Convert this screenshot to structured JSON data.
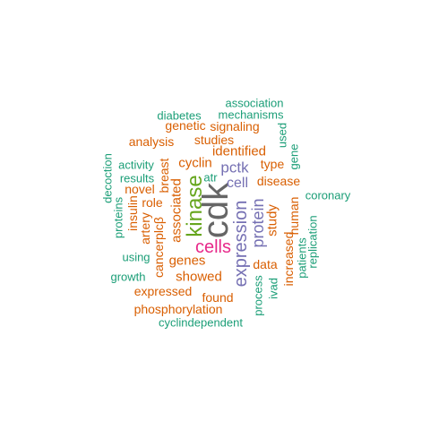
{
  "colors": {
    "teal": "#1b9e77",
    "orange": "#d95f02",
    "purple": "#7570b3",
    "magenta": "#e7298a",
    "green": "#66a61e",
    "gray": "#666666"
  },
  "words": [
    {
      "text": "cdk",
      "color": "gray",
      "vertical": true
    },
    {
      "text": "kinase",
      "color": "green",
      "vertical": true
    },
    {
      "text": "cells",
      "color": "magenta",
      "vertical": false
    },
    {
      "text": "expression",
      "color": "purple",
      "vertical": true
    },
    {
      "text": "protein",
      "color": "purple",
      "vertical": true
    },
    {
      "text": "pctk",
      "color": "purple",
      "vertical": false
    },
    {
      "text": "cell",
      "color": "purple",
      "vertical": false
    },
    {
      "text": "associated",
      "color": "orange",
      "vertical": true
    },
    {
      "text": "cyclin",
      "color": "orange",
      "vertical": false
    },
    {
      "text": "identified",
      "color": "orange",
      "vertical": false
    },
    {
      "text": "genes",
      "color": "orange",
      "vertical": false
    },
    {
      "text": "showed",
      "color": "orange",
      "vertical": false
    },
    {
      "text": "study",
      "color": "orange",
      "vertical": true
    },
    {
      "text": "disease",
      "color": "orange",
      "vertical": false
    },
    {
      "text": "breast",
      "color": "orange",
      "vertical": true
    },
    {
      "text": "type",
      "color": "orange",
      "vertical": false
    },
    {
      "text": "studies",
      "color": "orange",
      "vertical": false
    },
    {
      "text": "signaling",
      "color": "orange",
      "vertical": false
    },
    {
      "text": "genetic",
      "color": "orange",
      "vertical": false
    },
    {
      "text": "analysis",
      "color": "orange",
      "vertical": false
    },
    {
      "text": "novel",
      "color": "orange",
      "vertical": false
    },
    {
      "text": "role",
      "color": "orange",
      "vertical": false
    },
    {
      "text": "artery",
      "color": "orange",
      "vertical": true
    },
    {
      "text": "cancerplcβ",
      "color": "orange",
      "vertical": true
    },
    {
      "text": "expressed",
      "color": "orange",
      "vertical": false
    },
    {
      "text": "found",
      "color": "orange",
      "vertical": false
    },
    {
      "text": "phosphorylation",
      "color": "orange",
      "vertical": false
    },
    {
      "text": "data",
      "color": "orange",
      "vertical": false
    },
    {
      "text": "increased",
      "color": "orange",
      "vertical": true
    },
    {
      "text": "human",
      "color": "orange",
      "vertical": true
    },
    {
      "text": "insulin",
      "color": "orange",
      "vertical": true
    },
    {
      "text": "atr",
      "color": "teal",
      "vertical": false
    },
    {
      "text": "association",
      "color": "teal",
      "vertical": false
    },
    {
      "text": "diabetes",
      "color": "teal",
      "vertical": false
    },
    {
      "text": "mechanisms",
      "color": "teal",
      "vertical": false
    },
    {
      "text": "used",
      "color": "teal",
      "vertical": true
    },
    {
      "text": "gene",
      "color": "teal",
      "vertical": true
    },
    {
      "text": "coronary",
      "color": "teal",
      "vertical": false
    },
    {
      "text": "activity",
      "color": "teal",
      "vertical": false
    },
    {
      "text": "results",
      "color": "teal",
      "vertical": false
    },
    {
      "text": "decoction",
      "color": "teal",
      "vertical": true
    },
    {
      "text": "proteins",
      "color": "teal",
      "vertical": true
    },
    {
      "text": "using",
      "color": "teal",
      "vertical": false
    },
    {
      "text": "growth",
      "color": "teal",
      "vertical": false
    },
    {
      "text": "process",
      "color": "teal",
      "vertical": true
    },
    {
      "text": "ivad",
      "color": "teal",
      "vertical": true
    },
    {
      "text": "patients",
      "color": "teal",
      "vertical": true
    },
    {
      "text": "replication",
      "color": "teal",
      "vertical": true
    },
    {
      "text": "cyclindependent",
      "color": "teal",
      "vertical": false
    }
  ]
}
